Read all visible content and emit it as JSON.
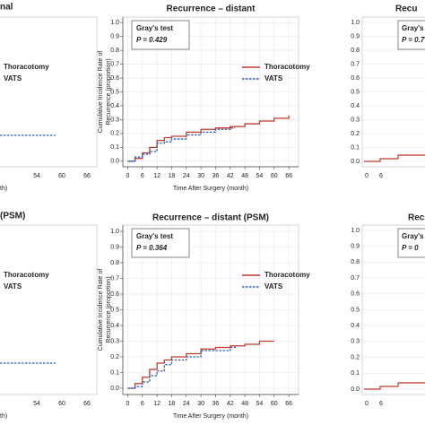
{
  "chart_data": [
    {
      "type": "line",
      "step": true,
      "title": "Recurrence – distant",
      "test_label": "Gray's test",
      "p_label": "P = 0.429",
      "ylabel": [
        "Cumulative Incidence Rate of",
        "Recurrence (proportion)"
      ],
      "xlabel": "Time After Surgery (month)",
      "grid": true,
      "xlim": [
        -2,
        70
      ],
      "ylim": [
        -0.04,
        1.04
      ],
      "xticks": [
        0,
        6,
        12,
        18,
        24,
        30,
        36,
        42,
        48,
        54,
        60,
        66
      ],
      "yticks": [
        {
          "value": 0,
          "label": "0.0"
        },
        0.1,
        0.2,
        0.3,
        0.4,
        0.5,
        0.6,
        0.7,
        0.8,
        0.9,
        {
          "value": 1,
          "label": "1.0"
        }
      ],
      "series": [
        {
          "name": "Thoracotomy",
          "color": "#c0392b",
          "dash": false,
          "x": [
            0,
            3,
            6,
            9,
            12,
            15,
            18,
            24,
            30,
            36,
            42,
            48,
            54,
            60,
            66
          ],
          "values": [
            0,
            0.02,
            0.06,
            0.1,
            0.15,
            0.17,
            0.18,
            0.21,
            0.23,
            0.24,
            0.25,
            0.27,
            0.29,
            0.31,
            0.33
          ]
        },
        {
          "name": "VATS",
          "color": "#2e5fb0",
          "dash": true,
          "x": [
            0,
            3,
            6,
            9,
            12,
            15,
            18,
            24,
            30,
            36,
            42,
            44
          ],
          "values": [
            0,
            0.03,
            0.05,
            0.07,
            0.13,
            0.14,
            0.16,
            0.19,
            0.21,
            0.23,
            0.24,
            0.24
          ]
        }
      ]
    },
    {
      "type": "line",
      "step": true,
      "title": "Recurrence – distant (PSM)",
      "test_label": "Gray's test",
      "p_label": "P = 0.364",
      "ylabel": [
        "Cumulative Incidence Rate of",
        "Recurrence (proportion)"
      ],
      "xlabel": "Time After Surgery (month)",
      "grid": true,
      "xlim": [
        -2,
        70
      ],
      "ylim": [
        -0.04,
        1.04
      ],
      "xticks": [
        0,
        6,
        12,
        18,
        24,
        30,
        36,
        42,
        48,
        54,
        60,
        66
      ],
      "yticks": [
        {
          "value": 0,
          "label": "0.0"
        },
        0.1,
        0.2,
        0.3,
        0.4,
        0.5,
        0.6,
        0.7,
        0.8,
        0.9,
        {
          "value": 1,
          "label": "1.0"
        }
      ],
      "series": [
        {
          "name": "Thoracotomy",
          "color": "#c0392b",
          "dash": false,
          "x": [
            0,
            3,
            6,
            9,
            12,
            15,
            18,
            24,
            30,
            36,
            42,
            48,
            54,
            60
          ],
          "values": [
            0,
            0.03,
            0.07,
            0.12,
            0.16,
            0.18,
            0.2,
            0.22,
            0.25,
            0.26,
            0.27,
            0.28,
            0.3,
            0.3
          ]
        },
        {
          "name": "VATS",
          "color": "#2e5fb0",
          "dash": true,
          "x": [
            0,
            3,
            6,
            9,
            12,
            15,
            18,
            24,
            30,
            36,
            42,
            44
          ],
          "values": [
            0,
            0.01,
            0.04,
            0.08,
            0.11,
            0.15,
            0.18,
            0.2,
            0.24,
            0.24,
            0.26,
            0.27
          ]
        }
      ]
    }
  ],
  "cropped_panels": [
    {
      "title": "nal",
      "legend": [
        "Thoracotomy",
        "VATS"
      ],
      "xtick_labels": [
        "54",
        "60",
        "66"
      ],
      "xlabel": "th)"
    },
    {
      "title": "Recu",
      "test_label": "Gray's",
      "p_label": "P = 0.7",
      "ytick_labels": [
        "0.0",
        "0.1",
        "0.2",
        "0.3",
        "0.4",
        "0.5",
        "0.6",
        "0.7",
        "0.8",
        "0.9",
        "1.0"
      ],
      "xtick_labels": [
        "0",
        "6"
      ]
    },
    {
      "title": "(PSM)",
      "legend": [
        "Thoracotomy",
        "VATS"
      ],
      "xtick_labels": [
        "54",
        "60",
        "66"
      ],
      "xlabel": "th)"
    },
    {
      "title": "Rec",
      "test_label": "Gray's",
      "p_label": "P = 0",
      "ytick_labels": [
        "0.0",
        "0.1",
        "0.2",
        "0.3",
        "0.4",
        "0.5",
        "0.6",
        "0.7",
        "0.8",
        "0.9",
        "1.0"
      ],
      "xtick_labels": [
        "0",
        "6"
      ]
    }
  ]
}
